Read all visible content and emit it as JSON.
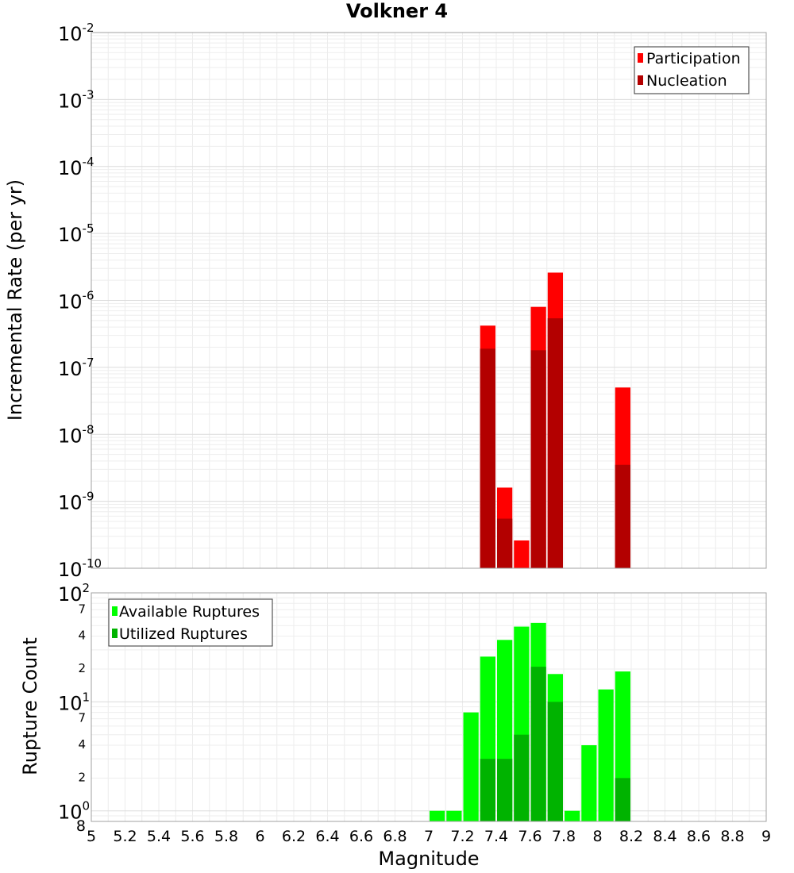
{
  "chart_data": [
    {
      "type": "bar",
      "title": "Volkner 4",
      "xlabel": "Magnitude",
      "ylabel": "Incremental Rate (per yr)",
      "xlim": [
        5,
        9
      ],
      "ylim": [
        1e-10,
        0.01
      ],
      "yscale": "log",
      "grid": true,
      "legend_position": "top-right",
      "bin_width": 0.1,
      "y_tick_labels": [
        {
          "base": "10",
          "exp": "-2"
        },
        {
          "base": "10",
          "exp": "-3"
        },
        {
          "base": "10",
          "exp": "-4"
        },
        {
          "base": "10",
          "exp": "-5"
        },
        {
          "base": "10",
          "exp": "-6"
        },
        {
          "base": "10",
          "exp": "-7"
        },
        {
          "base": "10",
          "exp": "-8"
        },
        {
          "base": "10",
          "exp": "-9"
        },
        {
          "base": "10",
          "exp": "-10"
        }
      ],
      "series": [
        {
          "name": "Participation",
          "color": "#ff0000",
          "x": [
            7.35,
            7.45,
            7.55,
            7.65,
            7.75,
            8.15
          ],
          "values": [
            4.2e-07,
            1.6e-09,
            2.6e-10,
            8e-07,
            2.6e-06,
            5e-08
          ]
        },
        {
          "name": "Nucleation",
          "color": "#b30000",
          "x": [
            7.35,
            7.45,
            7.65,
            7.75,
            8.15
          ],
          "values": [
            1.9e-07,
            5.5e-10,
            1.8e-07,
            5.4e-07,
            3.5e-09
          ]
        }
      ]
    },
    {
      "type": "bar",
      "xlabel": "Magnitude",
      "ylabel": "Rupture Count",
      "xlim": [
        5,
        9
      ],
      "ylim": [
        0.8,
        100
      ],
      "yscale": "log",
      "grid": true,
      "legend_position": "top-left",
      "bin_width": 0.1,
      "x_tick_labels": [
        "5",
        "5.2",
        "5.4",
        "5.6",
        "5.8",
        "6",
        "6.2",
        "6.4",
        "6.6",
        "6.8",
        "7",
        "7.2",
        "7.4",
        "7.6",
        "7.8",
        "8",
        "8.2",
        "8.4",
        "8.6",
        "8.8",
        "9"
      ],
      "y_major_labels": [
        {
          "value": 100,
          "base": "10",
          "exp": "2"
        },
        {
          "value": 10,
          "base": "10",
          "exp": "1"
        },
        {
          "value": 1,
          "base": "10",
          "exp": "0"
        }
      ],
      "y_minor_labels": [
        {
          "value": 70,
          "label": "7"
        },
        {
          "value": 40,
          "label": "4"
        },
        {
          "value": 20,
          "label": "2"
        },
        {
          "value": 7,
          "label": "7"
        },
        {
          "value": 4,
          "label": "4"
        },
        {
          "value": 2,
          "label": "2"
        },
        {
          "value": 0.8,
          "label": "8"
        }
      ],
      "series": [
        {
          "name": "Available Ruptures",
          "color": "#00ff00",
          "x": [
            7.05,
            7.15,
            7.25,
            7.35,
            7.45,
            7.55,
            7.65,
            7.75,
            7.85,
            7.95,
            8.05,
            8.15
          ],
          "values": [
            1,
            1,
            8,
            26,
            37,
            49,
            53,
            18,
            1,
            4,
            13,
            19
          ]
        },
        {
          "name": "Utilized Ruptures",
          "color": "#00b300",
          "x": [
            7.35,
            7.45,
            7.55,
            7.65,
            7.75,
            8.15
          ],
          "values": [
            3,
            3,
            5,
            21,
            10,
            2
          ]
        }
      ]
    }
  ]
}
